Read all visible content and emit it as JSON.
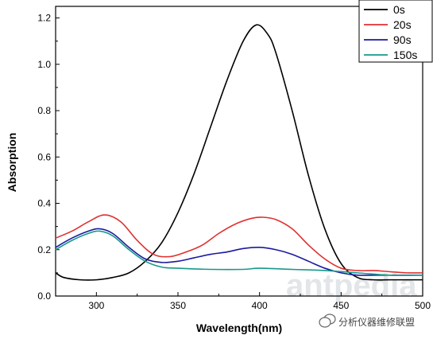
{
  "chart_data": {
    "type": "line",
    "xlabel": "Wavelength(nm)",
    "ylabel": "Absorption",
    "xlim": [
      275,
      500
    ],
    "ylim": [
      0.0,
      1.25
    ],
    "xticks": [
      300,
      350,
      400,
      450,
      500
    ],
    "xtick_labels": [
      "300",
      "350",
      "400",
      "450",
      "500"
    ],
    "yticks": [
      0.0,
      0.2,
      0.4,
      0.6,
      0.8,
      1.0,
      1.2
    ],
    "ytick_labels": [
      "0.0",
      "0.2",
      "0.4",
      "0.6",
      "0.8",
      "1.0",
      "1.2"
    ],
    "legend_position": "top-right",
    "grid": false,
    "series": [
      {
        "name": "0s",
        "color": "#000000",
        "x": [
          275,
          280,
          290,
          300,
          310,
          320,
          330,
          340,
          350,
          360,
          370,
          380,
          390,
          398,
          405,
          410,
          420,
          430,
          440,
          450,
          460,
          470,
          480,
          490,
          500
        ],
        "y": [
          0.1,
          0.08,
          0.07,
          0.07,
          0.08,
          0.1,
          0.15,
          0.23,
          0.36,
          0.53,
          0.73,
          0.93,
          1.1,
          1.17,
          1.13,
          1.05,
          0.8,
          0.52,
          0.29,
          0.14,
          0.08,
          0.07,
          0.07,
          0.07,
          0.07
        ]
      },
      {
        "name": "20s",
        "color": "#e03030",
        "x": [
          275,
          285,
          295,
          305,
          315,
          325,
          335,
          345,
          355,
          365,
          375,
          385,
          395,
          402,
          410,
          420,
          430,
          440,
          450,
          460,
          470,
          480,
          490,
          500
        ],
        "y": [
          0.25,
          0.28,
          0.32,
          0.35,
          0.32,
          0.24,
          0.18,
          0.17,
          0.19,
          0.22,
          0.27,
          0.31,
          0.335,
          0.34,
          0.33,
          0.29,
          0.22,
          0.16,
          0.12,
          0.11,
          0.11,
          0.105,
          0.1,
          0.1
        ]
      },
      {
        "name": "90s",
        "color": "#1a1aa0",
        "x": [
          275,
          285,
          295,
          302,
          310,
          320,
          330,
          340,
          350,
          360,
          370,
          380,
          390,
          400,
          410,
          420,
          430,
          440,
          450,
          460,
          470,
          480,
          490,
          500
        ],
        "y": [
          0.21,
          0.25,
          0.28,
          0.29,
          0.27,
          0.21,
          0.16,
          0.145,
          0.15,
          0.165,
          0.18,
          0.19,
          0.205,
          0.21,
          0.2,
          0.18,
          0.15,
          0.12,
          0.1,
          0.09,
          0.09,
          0.09,
          0.09,
          0.09
        ]
      },
      {
        "name": "150s",
        "color": "#17998a",
        "x": [
          275,
          285,
          295,
          302,
          310,
          320,
          330,
          340,
          350,
          370,
          390,
          400,
          420,
          440,
          460,
          480,
          500
        ],
        "y": [
          0.2,
          0.24,
          0.27,
          0.28,
          0.26,
          0.2,
          0.15,
          0.125,
          0.12,
          0.115,
          0.115,
          0.12,
          0.115,
          0.11,
          0.1,
          0.09,
          0.09
        ]
      }
    ]
  },
  "watermark": {
    "logo_text": "antpedia",
    "caption": "分析仪器维修联盟",
    "icon": "wechat-icon"
  }
}
